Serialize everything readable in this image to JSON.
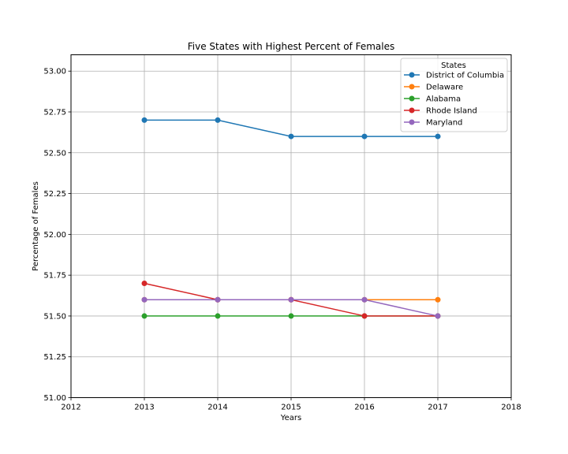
{
  "chart_data": {
    "type": "line",
    "title": "Five States with Highest Percent of Females",
    "xlabel": "Years",
    "ylabel": "Percentage of Females",
    "xlim": [
      2012,
      2018
    ],
    "ylim": [
      51.0,
      53.1
    ],
    "x_ticks": [
      "2012",
      "2013",
      "2014",
      "2015",
      "2016",
      "2017",
      "2018"
    ],
    "y_ticks": [
      "51.00",
      "51.25",
      "51.50",
      "51.75",
      "52.00",
      "52.25",
      "52.50",
      "52.75",
      "53.00"
    ],
    "grid": true,
    "legend": {
      "title": "States",
      "placement": "top-right"
    },
    "x": [
      2013,
      2014,
      2015,
      2016,
      2017
    ],
    "series": [
      {
        "name": "District of Columbia",
        "color": "#1f77b4",
        "values": [
          52.7,
          52.7,
          52.6,
          52.6,
          52.6
        ]
      },
      {
        "name": "Delaware",
        "color": "#ff7f0e",
        "values": [
          51.6,
          51.6,
          51.6,
          51.6,
          51.6
        ]
      },
      {
        "name": "Alabama",
        "color": "#2ca02c",
        "values": [
          51.5,
          51.5,
          51.5,
          51.5,
          51.5
        ]
      },
      {
        "name": "Rhode Island",
        "color": "#d62728",
        "values": [
          51.7,
          51.6,
          51.6,
          51.5,
          51.5
        ]
      },
      {
        "name": "Maryland",
        "color": "#9467bd",
        "values": [
          51.6,
          51.6,
          51.6,
          51.6,
          51.5
        ]
      }
    ]
  }
}
